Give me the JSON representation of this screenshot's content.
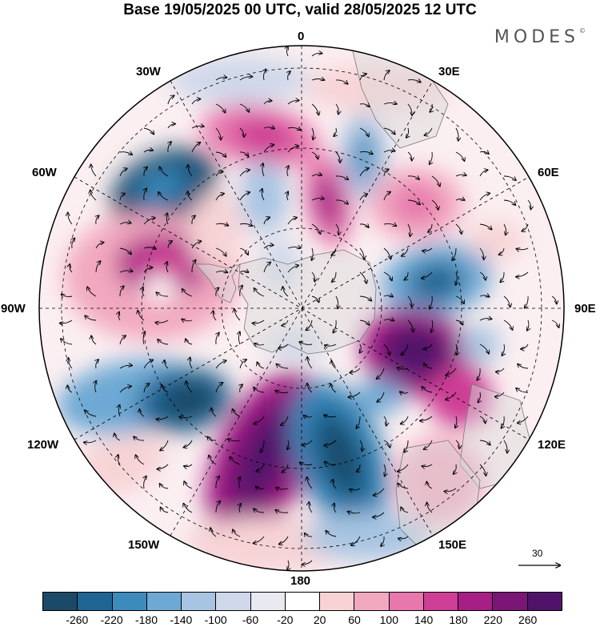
{
  "title": "Base 19/05/2025 00 UTC, valid 28/05/2025 12 UTC",
  "brand": "MODES",
  "brand_mark": "©",
  "longitude_labels": [
    "0",
    "30E",
    "60E",
    "90E",
    "120E",
    "150E",
    "180",
    "150W",
    "120W",
    "90W",
    "60W",
    "30W"
  ],
  "vector_scale_label": "30",
  "colorbar": {
    "colors": [
      "#1b4968",
      "#1f6593",
      "#3d8bbd",
      "#6da9d4",
      "#a7c5e2",
      "#cfd8ea",
      "#e9e9f2",
      "#ffffff",
      "#f7d3d6",
      "#f2a9c0",
      "#e777ad",
      "#cd3e94",
      "#a51f84",
      "#7b1677",
      "#50136a"
    ],
    "tick_labels": [
      "-260",
      "-220",
      "-180",
      "-140",
      "-100",
      "-60",
      "-20",
      "20",
      "60",
      "100",
      "140",
      "180",
      "220",
      "260"
    ]
  },
  "field_colors": {
    "land": "#d9d9d9",
    "coast": "#7a7a7a",
    "grid": "#000000",
    "vectors": "#000000"
  }
}
